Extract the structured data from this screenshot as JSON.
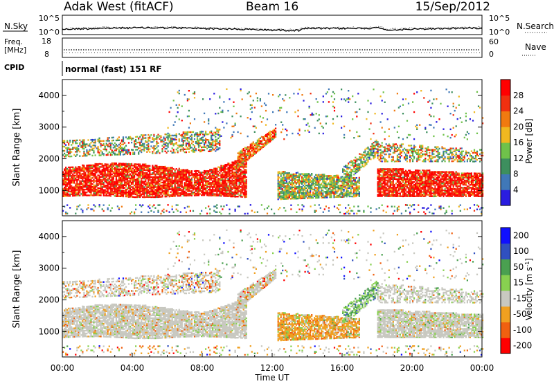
{
  "header": {
    "radar": "Adak West (fitACF)",
    "beam": "Beam 16",
    "date": "15/Sep/2012"
  },
  "noise_panel": {
    "left_label": "N.Sky",
    "right_label": "N.Search",
    "left_ticks": [
      "10^5",
      "10^0"
    ],
    "right_ticks": [
      "10^5",
      "10^0"
    ]
  },
  "freq_panel": {
    "left_label_line1": "Freq.",
    "left_label_line2": "[MHz]",
    "left_ticks": [
      "18",
      "8"
    ],
    "right_label": "Nave",
    "right_ticks": [
      "60",
      "0"
    ]
  },
  "cpid_panel": {
    "label": "CPID",
    "text": "normal (fast) 151 RF"
  },
  "colors": {
    "power": [
      "#2a1de0",
      "#4078b8",
      "#3d8f5e",
      "#6fc24a",
      "#f0b820",
      "#f07a10",
      "#f03010",
      "#ff0000"
    ],
    "velocity": [
      "#ff0000",
      "#f06010",
      "#f0a020",
      "#c8c8c0",
      "#88d050",
      "#4aa050",
      "#3050c0",
      "#1010ff"
    ]
  },
  "chart_data": [
    {
      "type": "heatmap",
      "name": "power",
      "ylabel": "Slant Range [km]",
      "xlabel": "",
      "xlim": [
        "00:00",
        "24:00"
      ],
      "ylim": [
        200,
        4500
      ],
      "yticks": [
        "1000",
        "2000",
        "3000",
        "4000"
      ],
      "yticks_values": [
        1000,
        2000,
        3000,
        4000
      ],
      "colorbar_label": "Power [dB]",
      "colorbar_ticks": [
        "4",
        "8",
        "12",
        "16",
        "20",
        "24",
        "28"
      ],
      "colorbar_ticks_values": [
        4,
        8,
        12,
        16,
        20,
        24,
        28
      ],
      "colorbar_range": [
        0,
        32
      ]
    },
    {
      "type": "heatmap",
      "name": "velocity",
      "ylabel": "Slant Range [km]",
      "xlabel": "Time UT",
      "xlim": [
        "00:00",
        "24:00"
      ],
      "ylim": [
        200,
        4500
      ],
      "yticks": [
        "1000",
        "2000",
        "3000",
        "4000"
      ],
      "yticks_values": [
        1000,
        2000,
        3000,
        4000
      ],
      "xticks": [
        "00:00",
        "04:00",
        "08:00",
        "12:00",
        "16:00",
        "20:00",
        "00:00"
      ],
      "xticks_values": [
        0,
        4,
        8,
        12,
        16,
        20,
        24
      ],
      "colorbar_label": "Velocity [m s",
      "colorbar_label_exp": "-1",
      "colorbar_label_end": "]",
      "colorbar_ticks": [
        "200",
        "100",
        "50",
        "15",
        "-15",
        "-50",
        "-100",
        "-200"
      ]
    }
  ]
}
